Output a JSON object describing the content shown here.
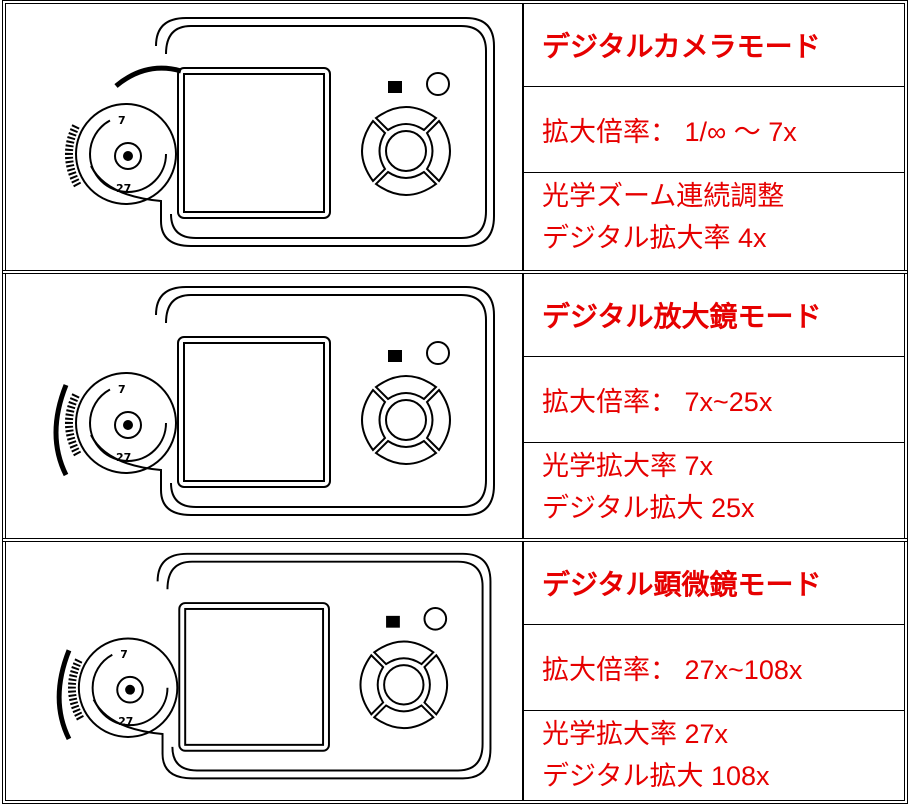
{
  "rows": [
    {
      "device": {
        "zoom_near": "7",
        "zoom_far": "27"
      },
      "title": "デジタルカメラモード",
      "magnification": "拡大倍率： 1/∞ ～ 7x",
      "details": [
        "光学ズーム連続調整",
        "デジタル拡大率 4x"
      ]
    },
    {
      "device": {
        "zoom_near": "7",
        "zoom_far": "27"
      },
      "title": "デジタル放大鏡モード",
      "magnification": "拡大倍率： 7x~25x",
      "details": [
        "光学拡大率 7x",
        "デジタル拡大 25x"
      ]
    },
    {
      "device": {
        "zoom_near": "7",
        "zoom_far": "27"
      },
      "title": "デジタル顕微鏡モード",
      "magnification": "拡大倍率： 27x~108x",
      "details": [
        "光学拡大率 27x",
        "デジタル拡大 108x"
      ]
    }
  ]
}
